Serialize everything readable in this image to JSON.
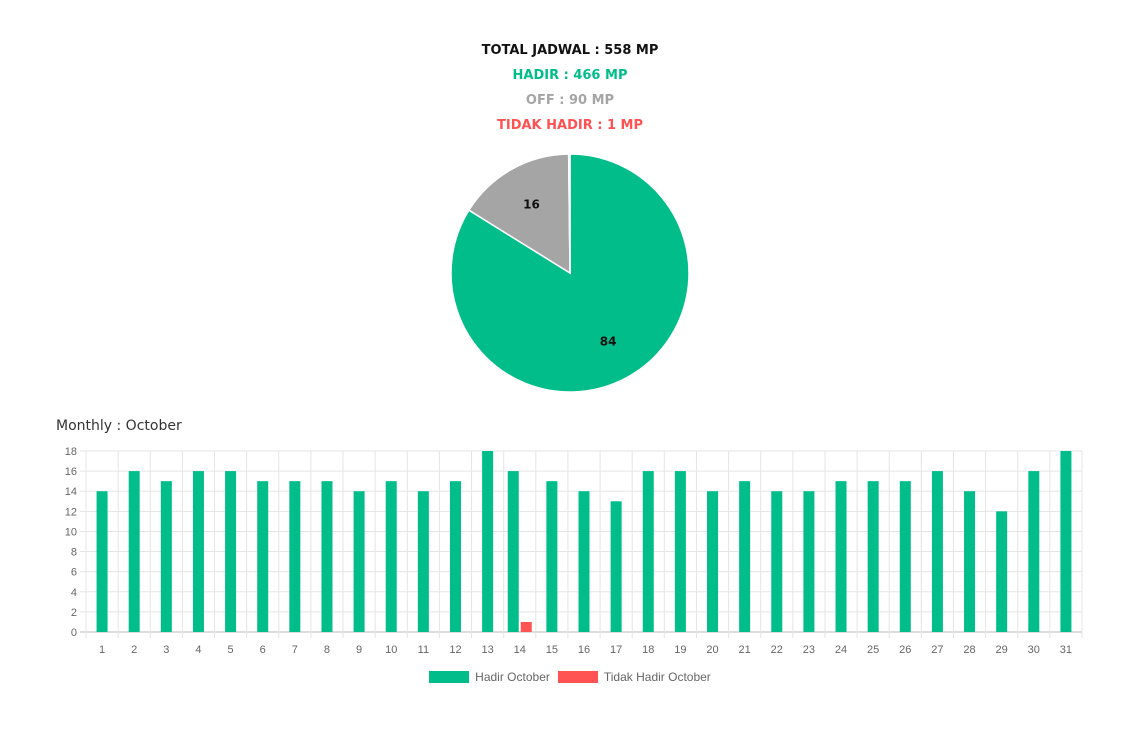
{
  "summary": {
    "total": "TOTAL JADWAL : 558 MP",
    "hadir": "HADIR : 466 MP",
    "off": "OFF : 90 MP",
    "tidak_hadir": "TIDAK HADIR : 1 MP"
  },
  "bar_title": "Monthly : October",
  "colors": {
    "hadir": "#00bd8a",
    "off": "#a5a5a5",
    "tidak_hadir": "#ff5252"
  },
  "chart_data": [
    {
      "type": "pie",
      "slices": [
        {
          "label": "Hadir",
          "value": 84,
          "color": "#00bd8a"
        },
        {
          "label": "Off",
          "value": 16,
          "color": "#a5a5a5"
        },
        {
          "label": "Tidak Hadir",
          "value": 0.18,
          "color": "#ff5252"
        }
      ],
      "data_labels": [
        "84",
        "16"
      ]
    },
    {
      "type": "bar",
      "title": "Monthly : October",
      "categories": [
        "1",
        "2",
        "3",
        "4",
        "5",
        "6",
        "7",
        "8",
        "9",
        "10",
        "11",
        "12",
        "13",
        "14",
        "15",
        "16",
        "17",
        "18",
        "19",
        "20",
        "21",
        "22",
        "23",
        "24",
        "25",
        "26",
        "27",
        "28",
        "29",
        "30",
        "31"
      ],
      "series": [
        {
          "name": "Hadir October",
          "color": "#00bd8a",
          "values": [
            14,
            16,
            15,
            16,
            16,
            15,
            15,
            15,
            14,
            15,
            14,
            15,
            18,
            16,
            15,
            14,
            13,
            16,
            16,
            14,
            15,
            14,
            14,
            15,
            15,
            15,
            16,
            14,
            12,
            16,
            18
          ]
        },
        {
          "name": "Tidak Hadir October",
          "color": "#ff5252",
          "values": [
            0,
            0,
            0,
            0,
            0,
            0,
            0,
            0,
            0,
            0,
            0,
            0,
            0,
            1,
            0,
            0,
            0,
            0,
            0,
            0,
            0,
            0,
            0,
            0,
            0,
            0,
            0,
            0,
            0,
            0,
            0
          ]
        }
      ],
      "ylim": [
        0,
        18
      ],
      "yticks": [
        0,
        2,
        4,
        6,
        8,
        10,
        12,
        14,
        16,
        18
      ],
      "grid": true,
      "legend": "bottom"
    }
  ]
}
